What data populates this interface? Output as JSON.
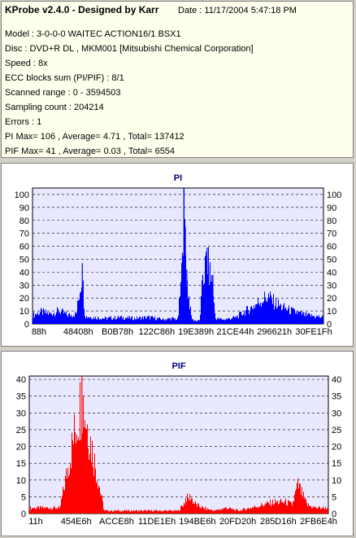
{
  "header": {
    "title": "KProbe v2.4.0 - Designed by Karr",
    "date": "Date : 11/17/2004 5:47:18 PM"
  },
  "info_lines": [
    "Model : 3-0-0-0 WAITEC  ACTION16/1       BSX1",
    "Disc : DVD+R DL , MKM001 [Mitsubishi Chemical Corporation]",
    "Speed : 8x",
    "ECC blocks sum (PI/PIF) : 8/1",
    "Scanned range : 0 - 3594503",
    "Sampling count : 204214",
    "Errors : 1",
    "PI Max= 106 , Average= 4.71 , Total= 137412",
    "PIF Max= 41 , Average= 0.03 , Total= 6554"
  ],
  "colors": {
    "info_bg": "#ffffee",
    "plot_bg": "#e8e8ff",
    "pi": "#0000ff",
    "pif": "#ff0000",
    "title": "#000080"
  },
  "chart_data": [
    {
      "type": "bar",
      "title": "PI",
      "ylim": [
        0,
        105
      ],
      "yticks": [
        0,
        10,
        20,
        30,
        40,
        50,
        60,
        70,
        80,
        90,
        100
      ],
      "xtick_labels": [
        "88h",
        "48408h",
        "B0B78h",
        "122C86h",
        "19E389h",
        "21CE44h",
        "296621h",
        "30FE1Fh"
      ],
      "grid": true,
      "series": [
        {
          "points": [
            [
              0,
              8
            ],
            [
              0.03,
              11
            ],
            [
              0.06,
              9
            ],
            [
              0.09,
              12
            ],
            [
              0.12,
              8
            ],
            [
              0.15,
              9
            ],
            [
              0.17,
              47
            ],
            [
              0.18,
              7
            ],
            [
              0.21,
              6
            ],
            [
              0.25,
              5
            ],
            [
              0.3,
              6
            ],
            [
              0.35,
              5
            ],
            [
              0.4,
              6
            ],
            [
              0.45,
              4
            ],
            [
              0.48,
              5
            ],
            [
              0.5,
              4
            ],
            [
              0.505,
              20
            ],
            [
              0.51,
              34
            ],
            [
              0.515,
              55
            ],
            [
              0.52,
              106
            ],
            [
              0.525,
              75
            ],
            [
              0.53,
              42
            ],
            [
              0.535,
              30
            ],
            [
              0.54,
              20
            ],
            [
              0.545,
              8
            ],
            [
              0.55,
              4
            ],
            [
              0.56,
              3
            ],
            [
              0.575,
              3
            ],
            [
              0.585,
              38
            ],
            [
              0.595,
              52
            ],
            [
              0.6,
              59
            ],
            [
              0.61,
              45
            ],
            [
              0.62,
              38
            ],
            [
              0.625,
              15
            ],
            [
              0.63,
              5
            ],
            [
              0.66,
              4
            ],
            [
              0.7,
              6
            ],
            [
              0.73,
              11
            ],
            [
              0.76,
              16
            ],
            [
              0.79,
              22
            ],
            [
              0.81,
              25
            ],
            [
              0.83,
              20
            ],
            [
              0.86,
              15
            ],
            [
              0.9,
              11
            ],
            [
              0.94,
              8
            ],
            [
              0.97,
              7
            ],
            [
              1.0,
              6
            ]
          ]
        }
      ]
    },
    {
      "type": "bar",
      "title": "PIF",
      "ylim": [
        0,
        41
      ],
      "yticks": [
        0,
        5,
        10,
        15,
        20,
        25,
        30,
        35,
        40
      ],
      "xtick_labels": [
        "11h",
        "454E6h",
        "ACCE8h",
        "11DE1Eh",
        "194BE6h",
        "20FD20h",
        "285D16h",
        "2FB6E4h"
      ],
      "grid": true,
      "series": [
        {
          "points": [
            [
              0.1,
              1
            ],
            [
              0.175,
              41
            ],
            [
              0.25,
              1
            ],
            [
              0.32,
              1
            ],
            [
              0.4,
              1
            ],
            [
              0.5,
              1
            ],
            [
              0.52,
              4
            ],
            [
              0.525,
              6
            ],
            [
              0.53,
              5
            ],
            [
              0.54,
              6
            ],
            [
              0.55,
              4
            ],
            [
              0.56,
              3
            ],
            [
              0.58,
              2
            ],
            [
              0.62,
              1
            ],
            [
              0.66,
              2
            ],
            [
              0.7,
              1
            ],
            [
              0.74,
              2
            ],
            [
              0.78,
              3
            ],
            [
              0.82,
              4
            ],
            [
              0.86,
              4
            ],
            [
              0.88,
              3
            ],
            [
              0.9,
              10
            ],
            [
              0.93,
              3
            ],
            [
              0.96,
              2
            ],
            [
              1.0,
              2
            ]
          ]
        }
      ]
    }
  ]
}
